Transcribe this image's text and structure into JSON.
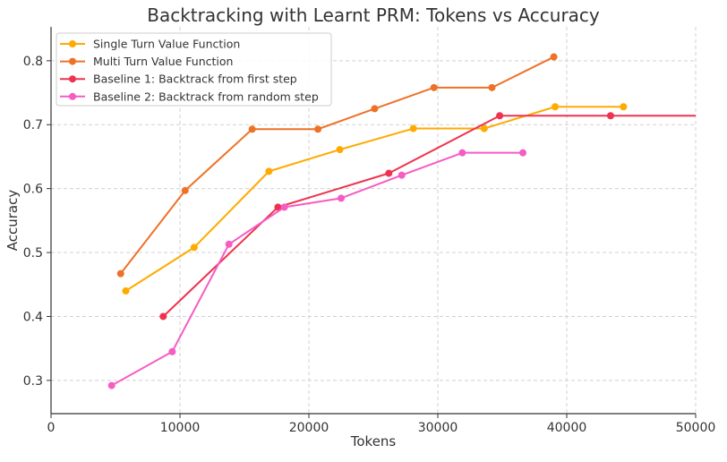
{
  "chart_data": {
    "type": "line",
    "title": "Backtracking with Learnt PRM: Tokens vs Accuracy",
    "xlabel": "Tokens",
    "ylabel": "Accuracy",
    "xlim": [
      0,
      50000
    ],
    "ylim": [
      0.248,
      0.853
    ],
    "xticks": [
      0,
      10000,
      20000,
      30000,
      40000,
      50000
    ],
    "xtick_labels": [
      "0",
      "10000",
      "20000",
      "30000",
      "40000",
      "50000"
    ],
    "yticks": [
      0.3,
      0.4,
      0.5,
      0.6,
      0.7,
      0.8
    ],
    "ytick_labels": [
      "0.3",
      "0.4",
      "0.5",
      "0.6",
      "0.7",
      "0.8"
    ],
    "grid": true,
    "legend_position": "upper left",
    "series": [
      {
        "name": "Single Turn Value Function",
        "color": "#FFAA00",
        "x": [
          5800,
          11100,
          16900,
          22400,
          28100,
          33600,
          39100,
          44400
        ],
        "y": [
          0.44,
          0.508,
          0.627,
          0.661,
          0.694,
          0.694,
          0.728,
          0.728
        ],
        "markers": true
      },
      {
        "name": "Multi Turn Value Function",
        "color": "#EE7128",
        "x": [
          5400,
          10400,
          15600,
          20700,
          25100,
          29700,
          34200,
          39000
        ],
        "y": [
          0.467,
          0.597,
          0.693,
          0.693,
          0.725,
          0.758,
          0.758,
          0.806
        ],
        "markers": true
      },
      {
        "name": "Baseline 1: Backtrack from first step",
        "color": "#EE3350",
        "x": [
          8700,
          17600,
          26200,
          34800,
          43400
        ],
        "y": [
          0.4,
          0.571,
          0.624,
          0.714,
          0.714
        ],
        "extend_to_x": 50000,
        "markers": true
      },
      {
        "name": "Baseline 2: Backtrack from random step",
        "color": "#F55CC4",
        "x": [
          4700,
          9400,
          13800,
          18100,
          22500,
          27200,
          31900,
          36600
        ],
        "y": [
          0.292,
          0.345,
          0.513,
          0.571,
          0.585,
          0.621,
          0.656,
          0.656
        ],
        "markers": true
      }
    ]
  }
}
